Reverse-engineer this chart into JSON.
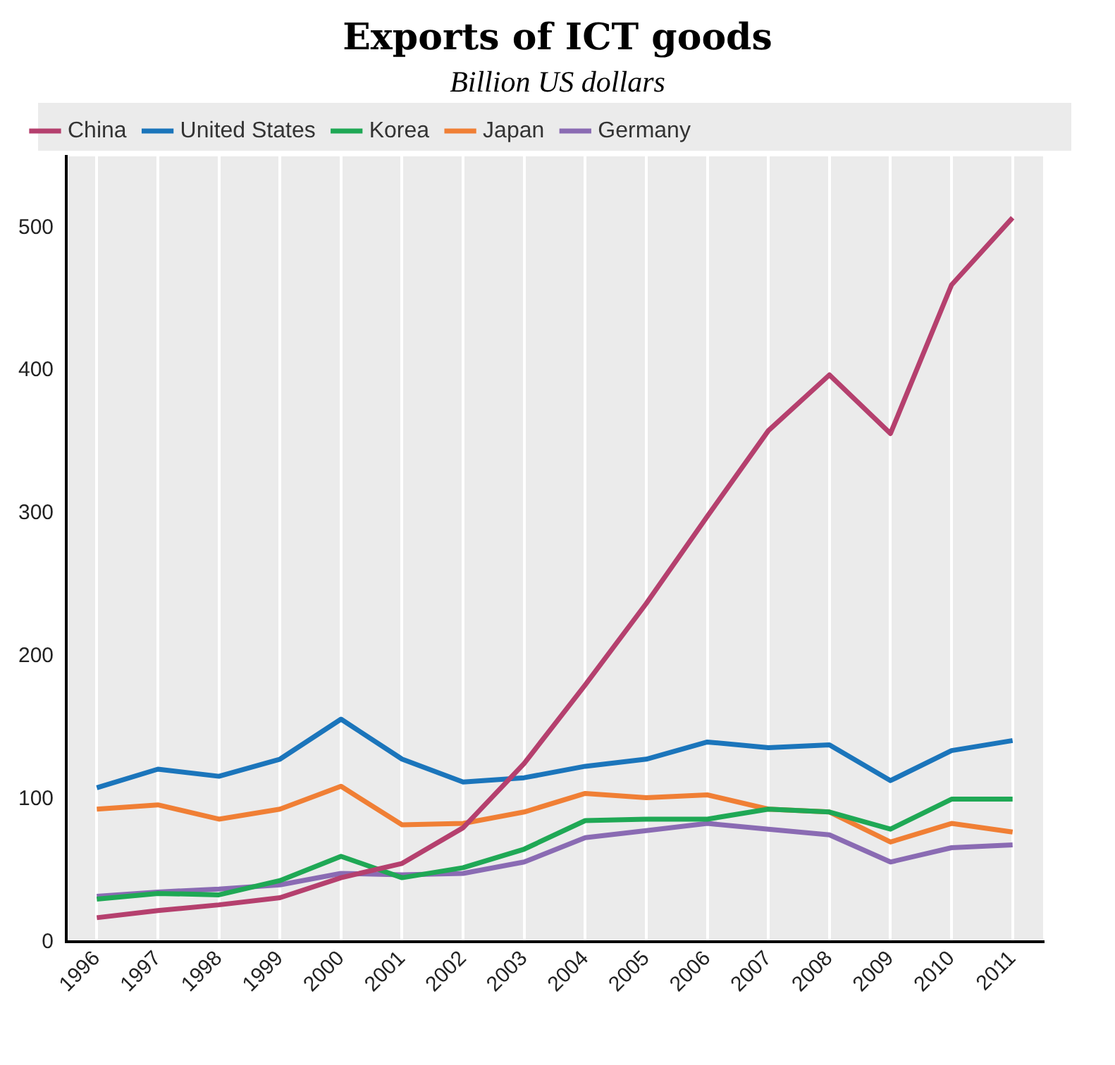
{
  "chart_data": {
    "type": "line",
    "title": "Exports of ICT goods",
    "subtitle": "Billion US dollars",
    "categories": [
      "1996",
      "1997",
      "1998",
      "1999",
      "2000",
      "2001",
      "2002",
      "2003",
      "2004",
      "2005",
      "2006",
      "2007",
      "2008",
      "2009",
      "2010",
      "2011"
    ],
    "series": [
      {
        "name": "China",
        "color": "#b5406e",
        "values": [
          17,
          22,
          26,
          31,
          45,
          55,
          80,
          125,
          180,
          237,
          298,
          358,
          397,
          356,
          460,
          507
        ]
      },
      {
        "name": "United States",
        "color": "#1b75bb",
        "values": [
          108,
          121,
          116,
          128,
          156,
          128,
          112,
          115,
          123,
          128,
          140,
          136,
          138,
          113,
          134,
          141
        ]
      },
      {
        "name": "Korea",
        "color": "#1fa855",
        "values": [
          30,
          34,
          33,
          43,
          60,
          45,
          52,
          65,
          85,
          86,
          86,
          93,
          91,
          79,
          100,
          100
        ]
      },
      {
        "name": "Japan",
        "color": "#f07f35",
        "values": [
          93,
          96,
          86,
          93,
          109,
          82,
          83,
          91,
          104,
          101,
          103,
          93,
          91,
          70,
          83,
          77
        ]
      },
      {
        "name": "Germany",
        "color": "#8a6bb3",
        "values": [
          32,
          35,
          37,
          40,
          48,
          47,
          48,
          56,
          73,
          78,
          83,
          79,
          75,
          56,
          66,
          68
        ]
      }
    ],
    "ylim": [
      0,
      550
    ],
    "yticks": [
      0,
      100,
      200,
      300,
      400,
      500
    ],
    "grid": "x",
    "legend": "top",
    "line_style": "solid",
    "marker": "none"
  }
}
